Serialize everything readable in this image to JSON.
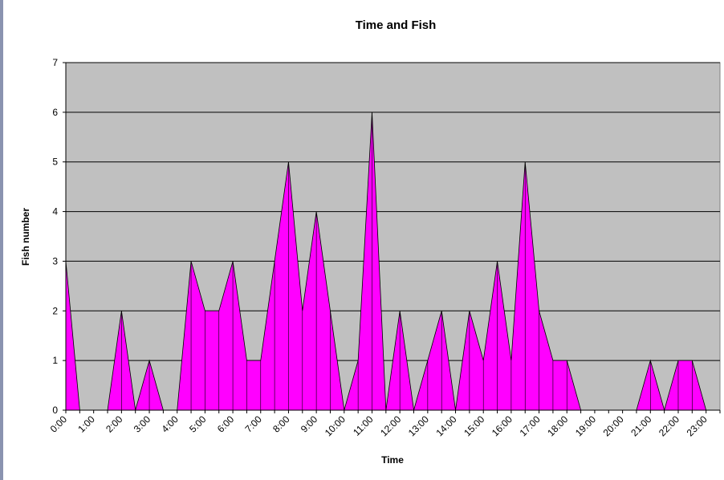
{
  "chart_data": {
    "type": "area",
    "title": "Time and Fish",
    "x_label": "Time",
    "y_label": "Fish number",
    "categories": [
      "0:00",
      null,
      "1:00",
      null,
      "2:00",
      null,
      "3:00",
      null,
      "4:00",
      null,
      "5:00",
      null,
      "6:00",
      null,
      "7:00",
      null,
      "8:00",
      null,
      "9:00",
      null,
      "10:00",
      null,
      "11:00",
      null,
      "12:00",
      null,
      "13:00",
      null,
      "14:00",
      null,
      "15:00",
      null,
      "16:00",
      null,
      "17:00",
      null,
      "18:00",
      null,
      "19:00",
      null,
      "20:00",
      null,
      "21:00",
      null,
      "22:00",
      null,
      "23:00",
      null
    ],
    "values": [
      3,
      0,
      0,
      0,
      2,
      0,
      1,
      0,
      0,
      3,
      2,
      2,
      3,
      1,
      1,
      3,
      5,
      2,
      4,
      2,
      0,
      1,
      6,
      0,
      2,
      0,
      1,
      2,
      0,
      2,
      1,
      3,
      1,
      5,
      2,
      1,
      1,
      0,
      0,
      0,
      0,
      0,
      1,
      0,
      1,
      1,
      0,
      0
    ],
    "color": "#ff00ff",
    "ylim": [
      0,
      7
    ],
    "yticks": [
      0,
      1,
      2,
      3,
      4,
      5,
      6,
      7
    ],
    "grid": true
  }
}
